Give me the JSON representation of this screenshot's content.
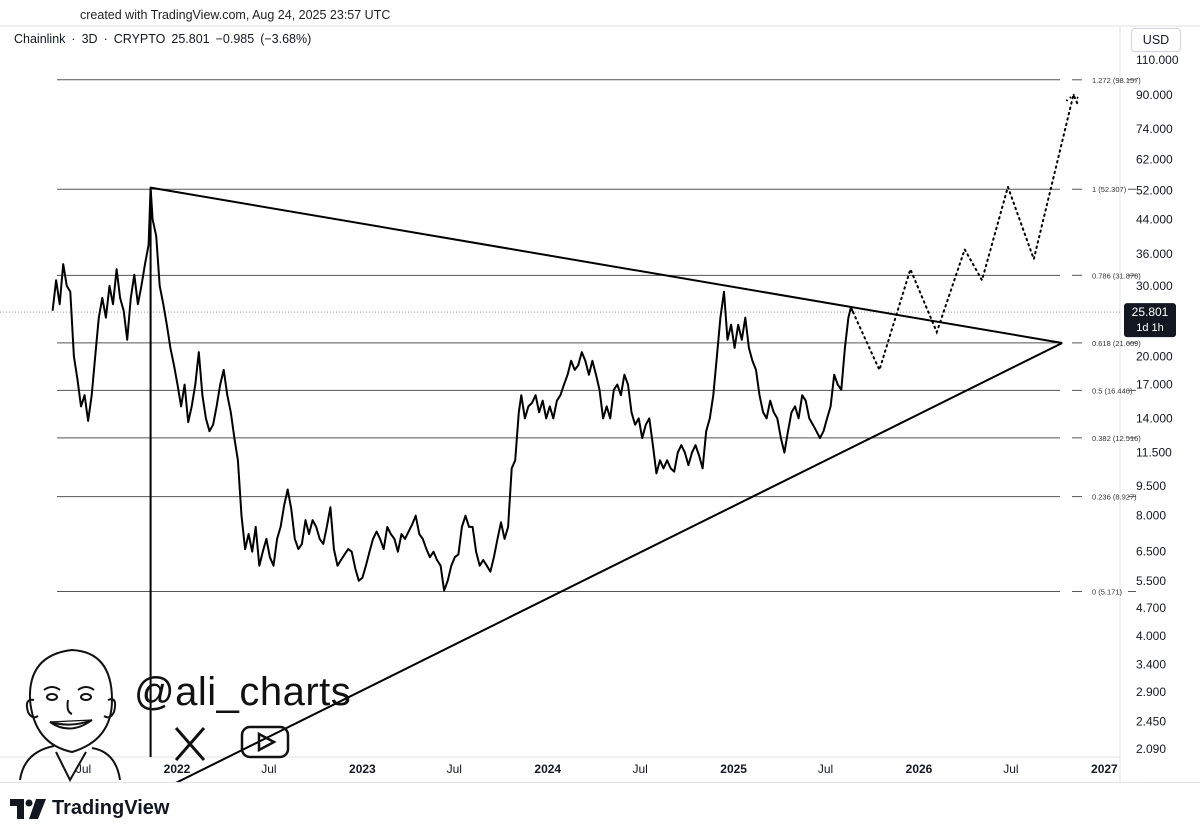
{
  "header": {
    "created_note": "created with TradingView.com, Aug 24, 2025 23:57 UTC"
  },
  "symbol": {
    "name": "Chainlink",
    "interval": "3D",
    "exchange": "CRYPTO",
    "price": "25.801",
    "change": "−0.985",
    "change_pct": "(−3.68%)"
  },
  "currency_label": "USD",
  "price_tag": {
    "price": "25.801",
    "countdown": "1d 1h",
    "bg": "#131722"
  },
  "watermark": {
    "handle": "@ali_charts",
    "icons": [
      "x-logo-icon",
      "youtube-icon",
      "avatar-sketch"
    ]
  },
  "brand": {
    "name": "TradingView"
  },
  "chart_data": {
    "type": "line",
    "scale": "log",
    "series": [
      {
        "values": [
          [
            "2021-05-01",
            26.0
          ],
          [
            "2021-05-08",
            31.0
          ],
          [
            "2021-05-15",
            27.0
          ],
          [
            "2021-05-22",
            34.0
          ],
          [
            "2021-05-29",
            30.0
          ],
          [
            "2021-06-05",
            29.0
          ],
          [
            "2021-06-12",
            20.0
          ],
          [
            "2021-06-19",
            17.5
          ],
          [
            "2021-06-26",
            15.0
          ],
          [
            "2021-07-03",
            16.0
          ],
          [
            "2021-07-10",
            13.8
          ],
          [
            "2021-07-17",
            16.0
          ],
          [
            "2021-07-24",
            20.0
          ],
          [
            "2021-07-31",
            25.0
          ],
          [
            "2021-08-07",
            28.0
          ],
          [
            "2021-08-14",
            25.0
          ],
          [
            "2021-08-21",
            30.0
          ],
          [
            "2021-08-28",
            27.0
          ],
          [
            "2021-09-04",
            33.0
          ],
          [
            "2021-09-11",
            28.0
          ],
          [
            "2021-09-18",
            26.0
          ],
          [
            "2021-09-25",
            22.0
          ],
          [
            "2021-10-02",
            28.0
          ],
          [
            "2021-10-09",
            32.0
          ],
          [
            "2021-10-16",
            27.0
          ],
          [
            "2021-10-23",
            30.0
          ],
          [
            "2021-10-30",
            34.0
          ],
          [
            "2021-11-06",
            38.0
          ],
          [
            "2021-11-10",
            52.8
          ],
          [
            "2021-11-14",
            44.0
          ],
          [
            "2021-11-21",
            40.0
          ],
          [
            "2021-11-28",
            30.0
          ],
          [
            "2021-12-05",
            27.0
          ],
          [
            "2021-12-12",
            24.0
          ],
          [
            "2021-12-19",
            21.0
          ],
          [
            "2021-12-26",
            19.0
          ],
          [
            "2022-01-02",
            17.0
          ],
          [
            "2022-01-09",
            15.0
          ],
          [
            "2022-01-16",
            17.0
          ],
          [
            "2022-01-23",
            13.7
          ],
          [
            "2022-01-30",
            15.0
          ],
          [
            "2022-02-06",
            17.0
          ],
          [
            "2022-02-13",
            20.5
          ],
          [
            "2022-02-20",
            16.0
          ],
          [
            "2022-02-27",
            14.0
          ],
          [
            "2022-03-06",
            13.0
          ],
          [
            "2022-03-13",
            13.5
          ],
          [
            "2022-03-20",
            15.0
          ],
          [
            "2022-03-27",
            17.0
          ],
          [
            "2022-04-03",
            18.5
          ],
          [
            "2022-04-10",
            16.0
          ],
          [
            "2022-04-17",
            14.5
          ],
          [
            "2022-04-24",
            12.5
          ],
          [
            "2022-05-01",
            11.0
          ],
          [
            "2022-05-08",
            8.0
          ],
          [
            "2022-05-15",
            6.6
          ],
          [
            "2022-05-22",
            7.2
          ],
          [
            "2022-05-29",
            6.5
          ],
          [
            "2022-06-05",
            7.5
          ],
          [
            "2022-06-12",
            6.0
          ],
          [
            "2022-06-19",
            6.5
          ],
          [
            "2022-06-26",
            7.0
          ],
          [
            "2022-07-03",
            6.3
          ],
          [
            "2022-07-10",
            6.0
          ],
          [
            "2022-07-17",
            7.0
          ],
          [
            "2022-07-24",
            7.5
          ],
          [
            "2022-07-31",
            8.5
          ],
          [
            "2022-08-07",
            9.3
          ],
          [
            "2022-08-14",
            8.3
          ],
          [
            "2022-08-21",
            7.0
          ],
          [
            "2022-08-28",
            6.6
          ],
          [
            "2022-09-04",
            6.8
          ],
          [
            "2022-09-11",
            7.8
          ],
          [
            "2022-09-18",
            7.2
          ],
          [
            "2022-09-25",
            7.8
          ],
          [
            "2022-10-02",
            7.5
          ],
          [
            "2022-10-09",
            7.0
          ],
          [
            "2022-10-16",
            6.8
          ],
          [
            "2022-10-23",
            7.5
          ],
          [
            "2022-10-30",
            8.4
          ],
          [
            "2022-11-06",
            6.6
          ],
          [
            "2022-11-13",
            6.0
          ],
          [
            "2022-11-20",
            6.2
          ],
          [
            "2022-11-27",
            6.4
          ],
          [
            "2022-12-04",
            6.6
          ],
          [
            "2022-12-11",
            6.5
          ],
          [
            "2022-12-18",
            5.9
          ],
          [
            "2022-12-25",
            5.5
          ],
          [
            "2023-01-01",
            5.6
          ],
          [
            "2023-01-08",
            6.0
          ],
          [
            "2023-01-15",
            6.5
          ],
          [
            "2023-01-22",
            7.0
          ],
          [
            "2023-01-29",
            7.3
          ],
          [
            "2023-02-05",
            7.0
          ],
          [
            "2023-02-12",
            6.6
          ],
          [
            "2023-02-19",
            7.5
          ],
          [
            "2023-02-26",
            7.2
          ],
          [
            "2023-03-05",
            7.0
          ],
          [
            "2023-03-12",
            6.5
          ],
          [
            "2023-03-19",
            7.2
          ],
          [
            "2023-03-26",
            7.0
          ],
          [
            "2023-04-02",
            7.3
          ],
          [
            "2023-04-09",
            7.6
          ],
          [
            "2023-04-16",
            8.0
          ],
          [
            "2023-04-23",
            7.2
          ],
          [
            "2023-04-30",
            7.0
          ],
          [
            "2023-05-07",
            6.6
          ],
          [
            "2023-05-14",
            6.3
          ],
          [
            "2023-05-21",
            6.5
          ],
          [
            "2023-05-28",
            6.2
          ],
          [
            "2023-06-04",
            6.0
          ],
          [
            "2023-06-11",
            5.2
          ],
          [
            "2023-06-18",
            5.5
          ],
          [
            "2023-06-25",
            6.0
          ],
          [
            "2023-07-02",
            6.3
          ],
          [
            "2023-07-09",
            6.4
          ],
          [
            "2023-07-16",
            7.5
          ],
          [
            "2023-07-23",
            8.0
          ],
          [
            "2023-07-30",
            7.5
          ],
          [
            "2023-08-06",
            7.5
          ],
          [
            "2023-08-13",
            6.5
          ],
          [
            "2023-08-20",
            6.0
          ],
          [
            "2023-08-27",
            6.2
          ],
          [
            "2023-09-03",
            6.0
          ],
          [
            "2023-09-10",
            5.8
          ],
          [
            "2023-09-17",
            6.3
          ],
          [
            "2023-09-24",
            7.0
          ],
          [
            "2023-10-01",
            7.7
          ],
          [
            "2023-10-08",
            7.0
          ],
          [
            "2023-10-15",
            7.5
          ],
          [
            "2023-10-22",
            10.5
          ],
          [
            "2023-10-29",
            11.0
          ],
          [
            "2023-11-05",
            14.5
          ],
          [
            "2023-11-10",
            16.0
          ],
          [
            "2023-11-17",
            14.0
          ],
          [
            "2023-11-24",
            15.0
          ],
          [
            "2023-12-01",
            15.3
          ],
          [
            "2023-12-08",
            16.0
          ],
          [
            "2023-12-15",
            14.5
          ],
          [
            "2023-12-22",
            15.5
          ],
          [
            "2023-12-29",
            14.0
          ],
          [
            "2024-01-05",
            15.0
          ],
          [
            "2024-01-12",
            14.0
          ],
          [
            "2024-01-19",
            15.5
          ],
          [
            "2024-01-26",
            16.0
          ],
          [
            "2024-02-02",
            17.0
          ],
          [
            "2024-02-09",
            18.0
          ],
          [
            "2024-02-16",
            19.5
          ],
          [
            "2024-02-23",
            18.5
          ],
          [
            "2024-03-01",
            19.0
          ],
          [
            "2024-03-08",
            20.5
          ],
          [
            "2024-03-15",
            19.5
          ],
          [
            "2024-03-22",
            18.0
          ],
          [
            "2024-03-29",
            19.5
          ],
          [
            "2024-04-05",
            18.0
          ],
          [
            "2024-04-12",
            16.5
          ],
          [
            "2024-04-19",
            14.0
          ],
          [
            "2024-04-26",
            15.0
          ],
          [
            "2024-05-03",
            14.0
          ],
          [
            "2024-05-10",
            16.5
          ],
          [
            "2024-05-17",
            17.0
          ],
          [
            "2024-05-24",
            16.0
          ],
          [
            "2024-05-31",
            18.0
          ],
          [
            "2024-06-07",
            17.0
          ],
          [
            "2024-06-14",
            14.5
          ],
          [
            "2024-06-21",
            13.5
          ],
          [
            "2024-06-28",
            14.0
          ],
          [
            "2024-07-05",
            12.5
          ],
          [
            "2024-07-12",
            13.5
          ],
          [
            "2024-07-19",
            14.0
          ],
          [
            "2024-07-26",
            12.0
          ],
          [
            "2024-08-02",
            10.2
          ],
          [
            "2024-08-09",
            11.0
          ],
          [
            "2024-08-16",
            10.5
          ],
          [
            "2024-08-23",
            11.0
          ],
          [
            "2024-08-30",
            10.5
          ],
          [
            "2024-09-06",
            10.3
          ],
          [
            "2024-09-13",
            11.5
          ],
          [
            "2024-09-20",
            12.0
          ],
          [
            "2024-09-27",
            11.5
          ],
          [
            "2024-10-04",
            10.7
          ],
          [
            "2024-10-11",
            11.5
          ],
          [
            "2024-10-18",
            12.0
          ],
          [
            "2024-10-25",
            11.3
          ],
          [
            "2024-11-01",
            10.5
          ],
          [
            "2024-11-08",
            13.0
          ],
          [
            "2024-11-15",
            14.0
          ],
          [
            "2024-11-22",
            16.0
          ],
          [
            "2024-11-29",
            20.0
          ],
          [
            "2024-12-06",
            25.0
          ],
          [
            "2024-12-13",
            29.0
          ],
          [
            "2024-12-20",
            22.0
          ],
          [
            "2024-12-27",
            24.0
          ],
          [
            "2025-01-03",
            21.0
          ],
          [
            "2025-01-10",
            24.0
          ],
          [
            "2025-01-17",
            22.0
          ],
          [
            "2025-01-24",
            25.0
          ],
          [
            "2025-01-31",
            21.0
          ],
          [
            "2025-02-07",
            19.5
          ],
          [
            "2025-02-14",
            18.5
          ],
          [
            "2025-02-21",
            16.0
          ],
          [
            "2025-02-28",
            14.5
          ],
          [
            "2025-03-07",
            14.0
          ],
          [
            "2025-03-14",
            15.5
          ],
          [
            "2025-03-21",
            14.5
          ],
          [
            "2025-03-28",
            14.0
          ],
          [
            "2025-04-04",
            12.5
          ],
          [
            "2025-04-11",
            11.5
          ],
          [
            "2025-04-18",
            13.0
          ],
          [
            "2025-04-25",
            14.5
          ],
          [
            "2025-05-02",
            15.0
          ],
          [
            "2025-05-09",
            14.0
          ],
          [
            "2025-05-16",
            16.0
          ],
          [
            "2025-05-23",
            15.5
          ],
          [
            "2025-05-30",
            14.0
          ],
          [
            "2025-06-06",
            13.5
          ],
          [
            "2025-06-13",
            13.0
          ],
          [
            "2025-06-20",
            12.5
          ],
          [
            "2025-06-27",
            13.0
          ],
          [
            "2025-07-04",
            14.0
          ],
          [
            "2025-07-11",
            15.0
          ],
          [
            "2025-07-18",
            18.0
          ],
          [
            "2025-07-25",
            17.0
          ],
          [
            "2025-08-01",
            16.5
          ],
          [
            "2025-08-08",
            21.0
          ],
          [
            "2025-08-15",
            25.0
          ],
          [
            "2025-08-20",
            26.5
          ],
          [
            "2025-08-24",
            25.8
          ]
        ]
      }
    ],
    "projection": [
      [
        "2025-08-24",
        25.8
      ],
      [
        "2025-10-15",
        18.5
      ],
      [
        "2025-12-15",
        33.0
      ],
      [
        "2026-02-05",
        23.0
      ],
      [
        "2026-04-01",
        37.0
      ],
      [
        "2026-05-05",
        31.0
      ],
      [
        "2026-06-25",
        53.0
      ],
      [
        "2026-08-15",
        35.0
      ],
      [
        "2026-11-01",
        90.0
      ],
      [
        "2026-11-10",
        85.0
      ]
    ],
    "trendlines": [
      {
        "from": [
          "2021-11-10",
          52.8
        ],
        "to": [
          "2026-10-10",
          21.6
        ]
      },
      {
        "from": [
          "2021-11-10",
          1.6
        ],
        "to": [
          "2026-10-10",
          21.6
        ]
      }
    ],
    "vertical_line": {
      "date": "2021-11-10"
    },
    "fib_levels": [
      {
        "label": "1.272 (98.157)",
        "value": 98.157
      },
      {
        "label": "1 (52.307)",
        "value": 52.307
      },
      {
        "label": "0.786 (31.878)",
        "value": 31.878
      },
      {
        "label": "0.618 (21.609)",
        "value": 21.609
      },
      {
        "label": "0.5 (16.446)",
        "value": 16.446
      },
      {
        "label": "0.382 (12.516)",
        "value": 12.516
      },
      {
        "label": "0.236 (8.927)",
        "value": 8.927
      },
      {
        "label": "0 (5.171)",
        "value": 5.171
      }
    ],
    "y_ticks": [
      "110.000",
      "90.000",
      "74.000",
      "62.000",
      "52.000",
      "44.000",
      "36.000",
      "30.000",
      "20.000",
      "17.000",
      "14.000",
      "11.500",
      "9.500",
      "8.000",
      "6.500",
      "5.500",
      "4.700",
      "4.000",
      "3.400",
      "2.900",
      "2.450",
      "2.090"
    ],
    "x_ticks": [
      {
        "label": "Jul",
        "date": "2021-07-01"
      },
      {
        "label": "2022",
        "date": "2022-01-01"
      },
      {
        "label": "Jul",
        "date": "2022-07-01"
      },
      {
        "label": "2023",
        "date": "2023-01-01"
      },
      {
        "label": "Jul",
        "date": "2023-07-01"
      },
      {
        "label": "2024",
        "date": "2024-01-01"
      },
      {
        "label": "Jul",
        "date": "2024-07-01"
      },
      {
        "label": "2025",
        "date": "2025-01-01"
      },
      {
        "label": "Jul",
        "date": "2025-07-01"
      },
      {
        "label": "2026",
        "date": "2026-01-01"
      },
      {
        "label": "Jul",
        "date": "2026-07-01"
      },
      {
        "label": "2027",
        "date": "2027-01-01"
      }
    ],
    "current_price": 25.801
  }
}
